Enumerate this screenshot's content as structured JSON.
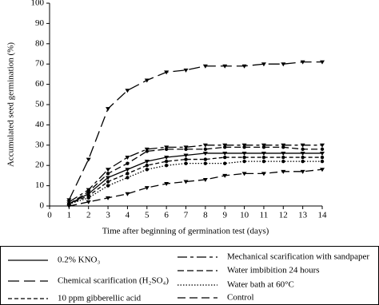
{
  "chart_data": {
    "type": "line",
    "xlabel": "Time after beginning of germination test (days)",
    "ylabel": "Accumulated seed germination (%)",
    "x": [
      1,
      2,
      3,
      4,
      5,
      6,
      7,
      8,
      9,
      10,
      11,
      12,
      13,
      14
    ],
    "xlim": [
      0,
      14
    ],
    "xticks": [
      0,
      1,
      2,
      3,
      4,
      5,
      6,
      7,
      8,
      9,
      10,
      11,
      12,
      13,
      14
    ],
    "ylim": [
      0,
      100
    ],
    "yticks": [
      0,
      10,
      20,
      30,
      40,
      50,
      60,
      70,
      80,
      90,
      100
    ],
    "series": [
      {
        "name": "0.2% KNO₃",
        "color": "#000000",
        "dash": "none",
        "values": [
          1,
          6,
          14,
          18,
          22,
          24,
          25,
          26,
          26,
          26,
          26,
          26,
          26,
          26
        ]
      },
      {
        "name": "Chemical scarification (H₂SO₄)",
        "color": "#000000",
        "dash": "14,6",
        "values": [
          3,
          23,
          48,
          57,
          62,
          66,
          67,
          69,
          69,
          69,
          70,
          70,
          71,
          71
        ]
      },
      {
        "name": "10 ppm gibberellic acid",
        "color": "#000000",
        "dash": "5,3",
        "values": [
          1,
          5,
          12,
          16,
          20,
          22,
          23,
          23,
          24,
          24,
          24,
          24,
          24,
          24
        ]
      },
      {
        "name": "Mechanical scarification with sandpaper",
        "color": "#000000",
        "dash": "12,4,4,4",
        "values": [
          2,
          8,
          18,
          24,
          28,
          29,
          29,
          30,
          30,
          30,
          30,
          30,
          30,
          30
        ]
      },
      {
        "name": "Water imbibition 24 hours",
        "color": "#000000",
        "dash": "8,4",
        "values": [
          1,
          7,
          16,
          21,
          27,
          28,
          28,
          28,
          29,
          29,
          29,
          29,
          28,
          28
        ]
      },
      {
        "name": "Water bath  at 60°C",
        "color": "#000000",
        "dash": "1.5,2",
        "values": [
          1,
          4,
          10,
          14,
          18,
          20,
          21,
          21,
          21,
          22,
          22,
          22,
          22,
          22
        ]
      },
      {
        "name": "Control",
        "color": "#000000",
        "dash": "10,5",
        "values": [
          0,
          2,
          4,
          6,
          9,
          11,
          12,
          13,
          15,
          16,
          16,
          17,
          17,
          18
        ]
      }
    ]
  }
}
